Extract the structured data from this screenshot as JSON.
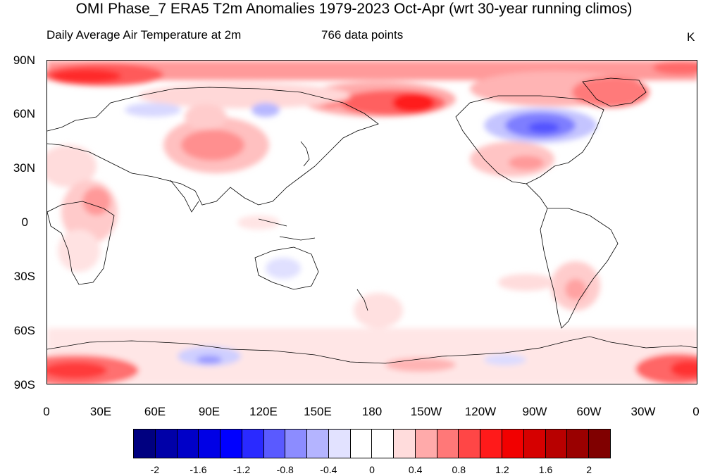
{
  "title": "OMI Phase_7 ERA5 T2m Anomalies 1979-2023 Oct-Apr (wrt 30-year running climos)",
  "subtitle_left": "Daily Average Air Temperature at 2m",
  "subtitle_mid": "766 data points",
  "units": "K",
  "lat_labels": [
    "90N",
    "60N",
    "30N",
    "0",
    "30S",
    "60S",
    "90S"
  ],
  "lon_labels": [
    "0",
    "30E",
    "60E",
    "90E",
    "120E",
    "150E",
    "180",
    "150W",
    "120W",
    "90W",
    "60W",
    "30W",
    "0"
  ],
  "colorbar": {
    "colors": [
      "#000080",
      "#0000a8",
      "#0000c8",
      "#0000e6",
      "#0000ff",
      "#2a2aff",
      "#5a5aff",
      "#8c8cff",
      "#b4b4ff",
      "#e2e2ff",
      "#ffffff",
      "#ffffff",
      "#ffdcdc",
      "#ffaaaa",
      "#ff7878",
      "#ff4646",
      "#ff1a1a",
      "#f20000",
      "#d60000",
      "#b80000",
      "#9a0000",
      "#800000"
    ],
    "labels": [
      "-2",
      "-1.6",
      "-1.2",
      "-0.8",
      "-0.4",
      "0",
      "0.4",
      "0.8",
      "1.2",
      "1.6",
      "2"
    ]
  }
}
